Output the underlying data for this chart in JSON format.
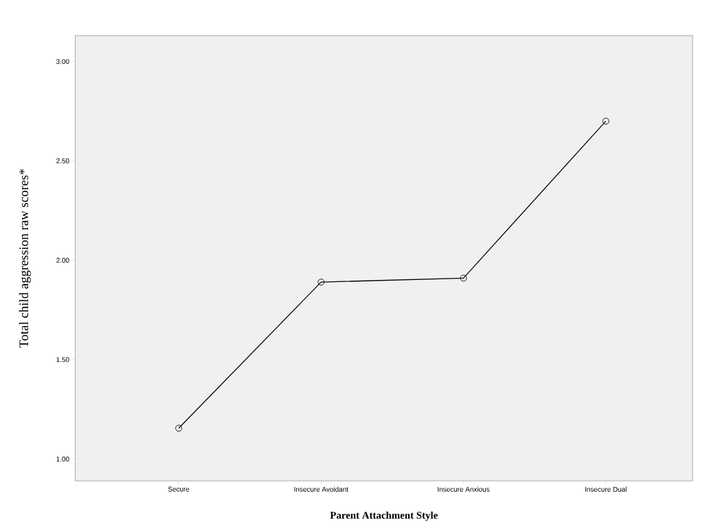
{
  "chart_data": {
    "type": "line",
    "xlabel": "Parent Attachment Style",
    "ylabel": "Total child aggression raw scores*",
    "categories": [
      "Secure",
      "Insecure Avoidant",
      "Insecure Anxious",
      "Insecure Dual"
    ],
    "values": [
      1.155,
      1.89,
      1.91,
      2.7
    ],
    "color": "#000000",
    "ylim": [
      0.89,
      3.13
    ],
    "yticks": [
      {
        "value": 1,
        "label": "1.00"
      },
      {
        "value": 1.5,
        "label": "1.50"
      },
      {
        "value": 2,
        "label": "2.00"
      },
      {
        "value": 2.5,
        "label": "2.50"
      },
      {
        "value": 3,
        "label": "3.00"
      }
    ],
    "grid": false,
    "marker": "circle",
    "line_style": "solid"
  }
}
